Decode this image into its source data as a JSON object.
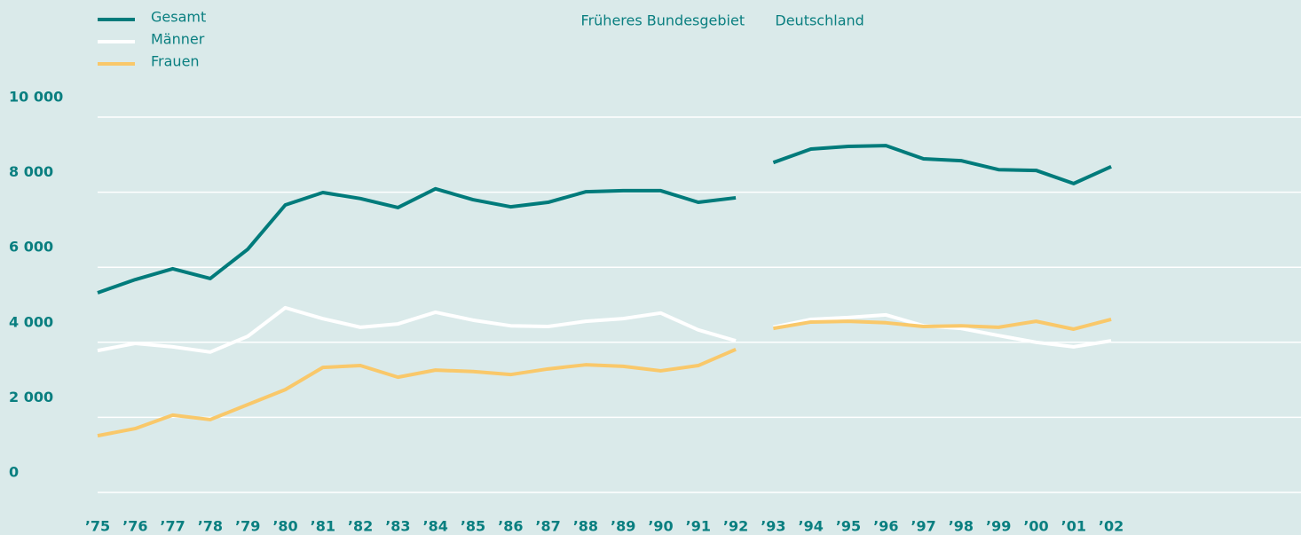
{
  "chart_data": {
    "type": "line",
    "categories": [
      "’75",
      "’76",
      "’77",
      "’78",
      "’79",
      "’80",
      "’81",
      "’82",
      "’83",
      "’84",
      "’85",
      "’86",
      "’87",
      "’88",
      "’89",
      "’90",
      "’91",
      "’92",
      "’93",
      "’94",
      "’95",
      "’96",
      "’97",
      "’98",
      "’99",
      "’00",
      "’01",
      "’02"
    ],
    "regions": [
      {
        "label": "Früheres Bundesgebiet",
        "from": "’75",
        "to": "’92"
      },
      {
        "label": "Deutschland",
        "from": "’93",
        "to": "’02"
      }
    ],
    "series": [
      {
        "name": "Gesamt",
        "color": "#007b7b",
        "values": [
          5320,
          5670,
          5960,
          5700,
          6480,
          7660,
          7990,
          7830,
          7590,
          8090,
          7800,
          7610,
          7730,
          8010,
          8040,
          8040,
          7730,
          7850,
          8790,
          9150,
          9220,
          9240,
          8890,
          8840,
          8600,
          8580,
          8230,
          8680
        ]
      },
      {
        "name": "Männer",
        "color": "#ffffff",
        "values": [
          3780,
          3970,
          3880,
          3740,
          4160,
          4920,
          4630,
          4400,
          4490,
          4800,
          4590,
          4440,
          4420,
          4560,
          4630,
          4780,
          4330,
          4040,
          4400,
          4610,
          4660,
          4730,
          4440,
          4370,
          4180,
          4000,
          3880,
          4040
        ]
      },
      {
        "name": "Frauen",
        "color": "#f9c86a",
        "values": [
          1510,
          1700,
          2060,
          1940,
          2340,
          2740,
          3330,
          3380,
          3070,
          3260,
          3220,
          3140,
          3290,
          3400,
          3360,
          3240,
          3380,
          3810,
          4370,
          4540,
          4560,
          4520,
          4420,
          4440,
          4400,
          4560,
          4350,
          4610
        ]
      }
    ],
    "ylim": [
      0,
      10000
    ],
    "yticks": [
      0,
      {
        "value": 2000,
        "label": "2 000"
      },
      {
        "value": 4000,
        "label": "4 000"
      },
      {
        "value": 6000,
        "label": "6 000"
      },
      {
        "value": 8000,
        "label": "8 000"
      },
      {
        "value": 10000,
        "label": "10 000"
      }
    ],
    "grid": true,
    "legend": "top-left"
  }
}
